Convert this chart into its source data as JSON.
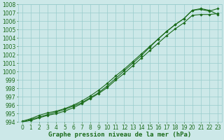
{
  "xlabel": "Graphe pression niveau de la mer (hPa)",
  "ylim": [
    994,
    1008
  ],
  "xlim": [
    -0.5,
    23.5
  ],
  "yticks": [
    994,
    995,
    996,
    997,
    998,
    999,
    1000,
    1001,
    1002,
    1003,
    1004,
    1005,
    1006,
    1007,
    1008
  ],
  "xticks": [
    0,
    1,
    2,
    3,
    4,
    5,
    6,
    7,
    8,
    9,
    10,
    11,
    12,
    13,
    14,
    15,
    16,
    17,
    18,
    19,
    20,
    21,
    22,
    23
  ],
  "line_color": "#1a6b1a",
  "marker": "D",
  "marker_size": 1.8,
  "bg_color": "#cce8e8",
  "grid_color": "#99cccc",
  "line1": [
    994.1,
    994.4,
    994.8,
    995.1,
    995.3,
    995.6,
    996.0,
    996.5,
    997.1,
    997.8,
    998.6,
    999.5,
    1000.3,
    1001.2,
    1002.1,
    1003.0,
    1003.9,
    1004.8,
    1005.6,
    1006.3,
    1007.3,
    1007.5,
    1007.3,
    1006.8
  ],
  "line2": [
    994.0,
    994.3,
    994.6,
    994.9,
    995.2,
    995.5,
    995.9,
    996.3,
    996.9,
    997.5,
    998.3,
    999.2,
    1000.1,
    1001.0,
    1001.9,
    1002.9,
    1003.9,
    1004.8,
    1005.6,
    1006.3,
    1007.3,
    1007.4,
    1007.2,
    1007.5
  ],
  "line3": [
    994.0,
    994.2,
    994.5,
    994.8,
    995.0,
    995.3,
    995.7,
    996.2,
    996.8,
    997.4,
    998.1,
    999.0,
    999.8,
    1000.7,
    1001.6,
    1002.5,
    1003.4,
    1004.3,
    1005.1,
    1005.8,
    1006.7,
    1006.8,
    1006.8,
    1006.9
  ],
  "tick_fontsize": 5.5,
  "xlabel_fontsize": 6.5,
  "line_width": 0.8
}
